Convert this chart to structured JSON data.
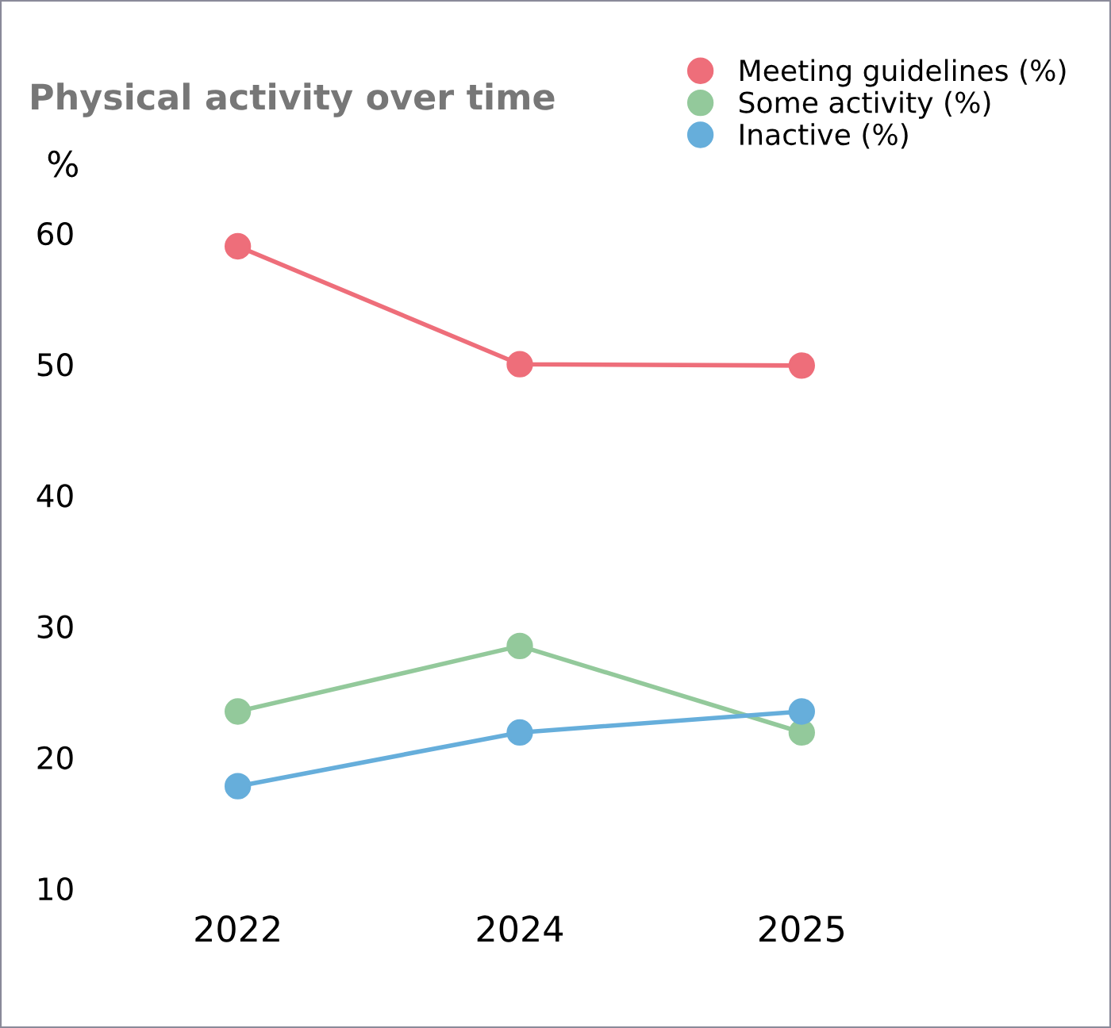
{
  "chart_data": {
    "type": "line",
    "title": "Physical activity over time",
    "ylabel": "%",
    "categories": [
      "2022",
      "2024",
      "2025"
    ],
    "series": [
      {
        "name": "Meeting guidelines (%)",
        "color": "#ee6e7a",
        "values": [
          59.0,
          50.0,
          49.9
        ]
      },
      {
        "name": "Some activity (%)",
        "color": "#93c99b",
        "values": [
          23.5,
          28.5,
          21.9
        ]
      },
      {
        "name": "Inactive (%)",
        "color": "#66aedb",
        "values": [
          17.8,
          21.9,
          23.5
        ]
      }
    ],
    "ylim": [
      10,
      60
    ],
    "yticks": [
      10,
      20,
      30,
      40,
      50,
      60
    ],
    "grid": false,
    "legend": "top right",
    "marker": "circle",
    "line_style": "solid"
  }
}
